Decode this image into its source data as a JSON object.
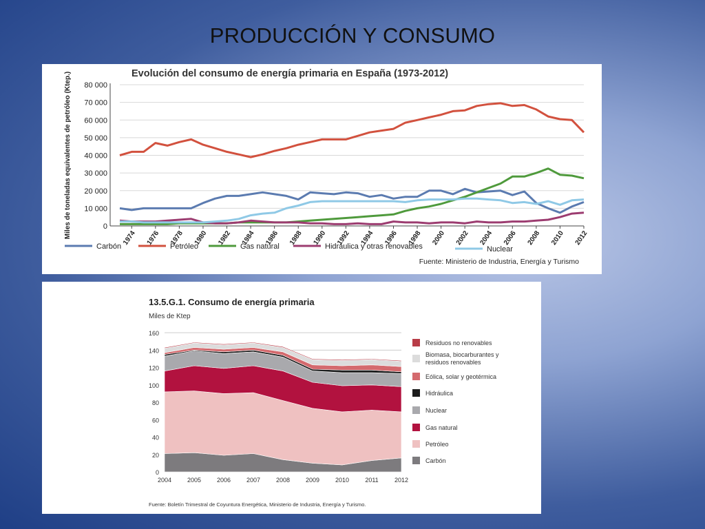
{
  "slide": {
    "title": "PRODUCCIÓN Y CONSUMO"
  },
  "chart_data": [
    {
      "type": "line",
      "title": "Evolución del consumo de energía primaria en España (1973-2012)",
      "ylabel": "Miles de toneladas equivalentes de petróleo (Ktep.)",
      "xlabel": "",
      "x_range": [
        1973,
        2012
      ],
      "ylim": [
        0,
        80000
      ],
      "yticks": [
        "80 000",
        "70 000",
        "60 000",
        "50 000",
        "40 000",
        "30 000",
        "20 000",
        "10 000",
        "0"
      ],
      "ytick_values": [
        80000,
        70000,
        60000,
        50000,
        40000,
        30000,
        20000,
        10000,
        0
      ],
      "xticks": [
        1974,
        1976,
        1978,
        1980,
        1982,
        1984,
        1986,
        1988,
        1990,
        1992,
        1994,
        1996,
        1998,
        2000,
        2002,
        2004,
        2006,
        2008,
        2010,
        2012
      ],
      "grid": true,
      "legend_position": "bottom",
      "source": "Fuente: Ministerio de Industria, Energía y Turismo",
      "series": [
        {
          "name": "Carbón",
          "color": "#5b7bb0",
          "x": [
            1973,
            1974,
            1975,
            1976,
            1977,
            1978,
            1979,
            1980,
            1981,
            1982,
            1983,
            1984,
            1985,
            1986,
            1987,
            1988,
            1989,
            1990,
            1991,
            1992,
            1993,
            1994,
            1995,
            1996,
            1997,
            1998,
            1999,
            2000,
            2001,
            2002,
            2003,
            2004,
            2005,
            2006,
            2007,
            2008,
            2009,
            2010,
            2011,
            2012
          ],
          "values": [
            10000,
            9000,
            10000,
            10000,
            10000,
            10000,
            10000,
            13000,
            15500,
            17000,
            17000,
            18000,
            19000,
            18000,
            17000,
            15000,
            19000,
            18500,
            18000,
            19000,
            18500,
            16500,
            17500,
            15500,
            16500,
            16500,
            20000,
            20000,
            18000,
            21000,
            19000,
            19500,
            20000,
            17500,
            19500,
            13000,
            10000,
            7500,
            11000,
            13500
          ]
        },
        {
          "name": "Petróleo",
          "color": "#d2513e",
          "x": [
            1973,
            1974,
            1975,
            1976,
            1977,
            1978,
            1979,
            1980,
            1981,
            1982,
            1983,
            1984,
            1985,
            1986,
            1987,
            1988,
            1989,
            1990,
            1991,
            1992,
            1993,
            1994,
            1995,
            1996,
            1997,
            1998,
            1999,
            2000,
            2001,
            2002,
            2003,
            2004,
            2005,
            2006,
            2007,
            2008,
            2009,
            2010,
            2011,
            2012
          ],
          "values": [
            40000,
            42000,
            42000,
            47000,
            45500,
            47500,
            49000,
            46000,
            44000,
            42000,
            40500,
            39000,
            40500,
            42500,
            44000,
            46000,
            47500,
            49000,
            49000,
            49000,
            51000,
            53000,
            54000,
            55000,
            58500,
            60000,
            61500,
            63000,
            65000,
            65500,
            68000,
            69000,
            69500,
            68000,
            68500,
            66000,
            62000,
            60500,
            60000,
            53000
          ]
        },
        {
          "name": "Gas natural",
          "color": "#4f9a3c",
          "x": [
            1973,
            1974,
            1975,
            1976,
            1977,
            1978,
            1979,
            1980,
            1981,
            1982,
            1983,
            1984,
            1985,
            1986,
            1987,
            1988,
            1989,
            1990,
            1991,
            1992,
            1993,
            1994,
            1995,
            1996,
            1997,
            1998,
            1999,
            2000,
            2001,
            2002,
            2003,
            2004,
            2005,
            2006,
            2007,
            2008,
            2009,
            2010,
            2011,
            2012
          ],
          "values": [
            1000,
            1000,
            1000,
            1000,
            1000,
            1500,
            1500,
            1500,
            1500,
            1500,
            2000,
            2000,
            2000,
            2000,
            2000,
            2500,
            3000,
            3500,
            4000,
            4500,
            5000,
            5500,
            6000,
            6500,
            8500,
            10000,
            11000,
            12500,
            14500,
            16500,
            19000,
            21500,
            24000,
            28000,
            28000,
            30000,
            32500,
            29000,
            28500,
            27000
          ]
        },
        {
          "name": "Hidráulica y otras renovables",
          "color": "#9c3c70",
          "x": [
            1973,
            1974,
            1975,
            1976,
            1977,
            1978,
            1979,
            1980,
            1981,
            1982,
            1983,
            1984,
            1985,
            1986,
            1987,
            1988,
            1989,
            1990,
            1991,
            1992,
            1993,
            1994,
            1995,
            1996,
            1997,
            1998,
            1999,
            2000,
            2001,
            2002,
            2003,
            2004,
            2005,
            2006,
            2007,
            2008,
            2009,
            2010,
            2011,
            2012
          ],
          "values": [
            3000,
            2500,
            2500,
            2500,
            3000,
            3500,
            4000,
            2000,
            1500,
            1500,
            2000,
            3000,
            2500,
            2000,
            2000,
            2000,
            1500,
            1500,
            1000,
            1000,
            1500,
            1000,
            1000,
            2500,
            2000,
            2000,
            1500,
            2000,
            2000,
            1500,
            2500,
            2000,
            2000,
            2500,
            2500,
            3000,
            3500,
            5000,
            7000,
            7500
          ]
        },
        {
          "name": "Nuclear",
          "color": "#8fc9e6",
          "x": [
            1973,
            1974,
            1975,
            1976,
            1977,
            1978,
            1979,
            1980,
            1981,
            1982,
            1983,
            1984,
            1985,
            1986,
            1987,
            1988,
            1989,
            1990,
            1991,
            1992,
            1993,
            1994,
            1995,
            1996,
            1997,
            1998,
            1999,
            2000,
            2001,
            2002,
            2003,
            2004,
            2005,
            2006,
            2007,
            2008,
            2009,
            2010,
            2011,
            2012
          ],
          "values": [
            2500,
            2500,
            2000,
            2000,
            2000,
            2000,
            2000,
            2000,
            2500,
            3000,
            4000,
            6000,
            7000,
            7500,
            10000,
            11500,
            13500,
            14000,
            14000,
            14000,
            14000,
            14000,
            14000,
            14000,
            13500,
            14500,
            15000,
            15000,
            15000,
            15500,
            15500,
            15000,
            14500,
            13000,
            13500,
            12500,
            14000,
            12000,
            14500,
            15000
          ]
        }
      ]
    },
    {
      "type": "area",
      "title": "13.5.G.1. Consumo de energía primaria",
      "ylabel": "Miles de Ktep",
      "xlabel": "",
      "ylim": [
        0,
        160
      ],
      "yticks": [
        0,
        20,
        40,
        60,
        80,
        100,
        120,
        140,
        160
      ],
      "grid": true,
      "legend_position": "right",
      "source": "Fuente: Boletín Trimestral de Coyuntura Energética, Ministerio de Industria, Energía y Turismo.",
      "categories": [
        "2004",
        "2005",
        "2006",
        "2007",
        "2008",
        "2009",
        "2010",
        "2011",
        "2012"
      ],
      "series": [
        {
          "name": "Carbón",
          "color": "#7d7b7e",
          "values": [
            21,
            22,
            19,
            21,
            14,
            10,
            8,
            13,
            16
          ]
        },
        {
          "name": "Petróleo",
          "color": "#efc1c1",
          "values": [
            71,
            71,
            71,
            70,
            68,
            63,
            61,
            58,
            53
          ]
        },
        {
          "name": "Gas natural",
          "color": "#b2123f",
          "values": [
            24,
            29,
            29,
            31,
            34,
            30,
            30,
            29,
            29
          ]
        },
        {
          "name": "Nuclear",
          "color": "#a9a9ad",
          "values": [
            17,
            17,
            17,
            16,
            16,
            13,
            15,
            14,
            15
          ]
        },
        {
          "name": "Hidráulica",
          "color": "#1c1c1c",
          "values": [
            2,
            1,
            2,
            2,
            2,
            2,
            3,
            3,
            2
          ]
        },
        {
          "name": "Eólica, solar y geotérmica",
          "color": "#d46a6e",
          "values": [
            2,
            3,
            3,
            3,
            4,
            5,
            5,
            6,
            6
          ]
        },
        {
          "name": "Biomasa, biocarburantes y residuos renovables",
          "color": "#dcdcdc",
          "values": [
            5,
            5,
            5,
            5,
            5,
            6,
            6,
            6,
            6
          ]
        },
        {
          "name": "Residuos no renovables",
          "color": "#b83c47",
          "values": [
            1,
            1,
            1,
            1,
            1,
            1,
            1,
            1,
            1
          ]
        }
      ]
    }
  ]
}
